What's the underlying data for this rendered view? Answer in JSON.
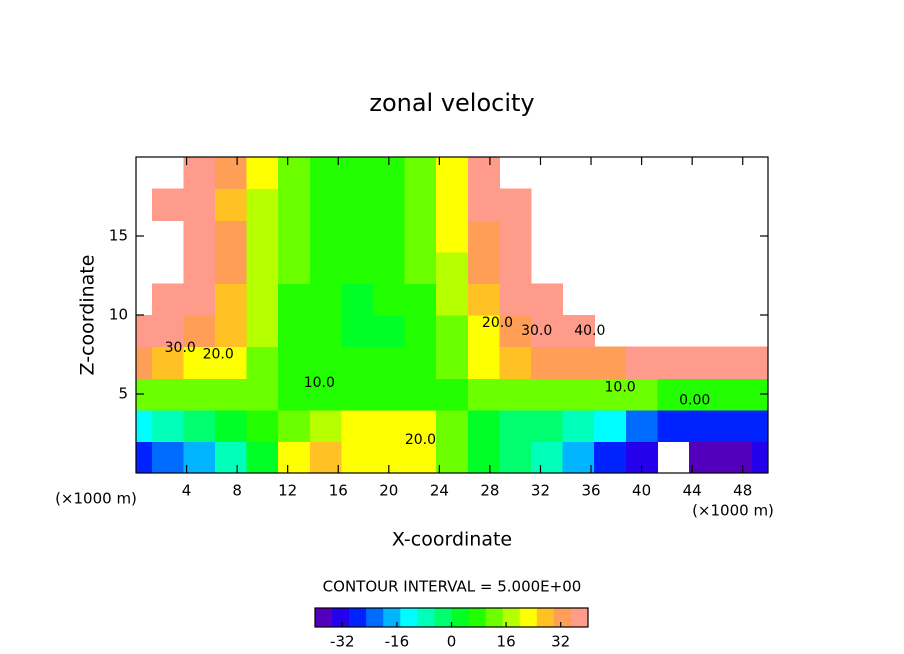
{
  "chart_data": {
    "type": "contour",
    "title": "zonal velocity",
    "x_label": "X-coordinate",
    "y_label": "Z-coordinate",
    "x_unit_label": "(×1000 m)",
    "contour_interval": {
      "value": 5,
      "label": "CONTOUR INTERVAL = 5.000E+00"
    },
    "xlim": [
      0,
      50
    ],
    "ylim": [
      0,
      20
    ],
    "xticks": [
      4,
      8,
      12,
      16,
      20,
      24,
      28,
      32,
      36,
      40,
      44,
      48
    ],
    "yticks": [
      5,
      10,
      15
    ],
    "clim": [
      -40,
      40
    ],
    "cticks": [
      -32,
      -16,
      0,
      16,
      32
    ],
    "x": [
      0,
      2.5,
      5,
      7.5,
      10,
      12.5,
      15,
      17.5,
      20,
      22.5,
      25,
      27.5,
      30,
      32.5,
      35,
      37.5,
      40,
      42.5,
      45,
      47.5,
      50
    ],
    "y": [
      1,
      3,
      5,
      7,
      9,
      11,
      13,
      15,
      17,
      19
    ],
    "values": [
      [
        -28,
        -24,
        -18,
        -8,
        2,
        20,
        28,
        24,
        22,
        20,
        10,
        2,
        -4,
        -10,
        -18,
        -26,
        -34,
        null,
        -39,
        -38,
        -34
      ],
      [
        -12,
        -8,
        -5,
        0,
        5,
        10,
        16,
        20,
        20,
        20,
        10,
        0,
        -2,
        -5,
        -10,
        -15,
        -22,
        -28,
        -30,
        -30,
        -28
      ],
      [
        12,
        12,
        12,
        12,
        10,
        8,
        7,
        8,
        9,
        9,
        9,
        10,
        12,
        12,
        12,
        11,
        10,
        9,
        8,
        7,
        6
      ],
      [
        30,
        27,
        24,
        20,
        14,
        9,
        6,
        5,
        6,
        8,
        14,
        20,
        26,
        30,
        32,
        34,
        35,
        36,
        36,
        36,
        36
      ],
      [
        46,
        40,
        34,
        26,
        16,
        9,
        5,
        4,
        4,
        7,
        14,
        24,
        34,
        40,
        45,
        null,
        null,
        null,
        null,
        null,
        null
      ],
      [
        null,
        44,
        38,
        28,
        16,
        9,
        5,
        4,
        5,
        8,
        16,
        28,
        38,
        46,
        null,
        null,
        null,
        null,
        null,
        null,
        null
      ],
      [
        null,
        null,
        42,
        32,
        18,
        10,
        6,
        5,
        6,
        10,
        18,
        30,
        40,
        null,
        null,
        null,
        null,
        null,
        null,
        null,
        null
      ],
      [
        null,
        null,
        40,
        30,
        18,
        12,
        8,
        7,
        8,
        12,
        20,
        30,
        42,
        null,
        null,
        null,
        null,
        null,
        null,
        null,
        null
      ],
      [
        null,
        42,
        36,
        28,
        18,
        12,
        9,
        8,
        8,
        12,
        20,
        35,
        45,
        null,
        null,
        null,
        null,
        null,
        null,
        null,
        null
      ],
      [
        null,
        null,
        40,
        32,
        22,
        14,
        9,
        8,
        8,
        12,
        22,
        38,
        null,
        null,
        null,
        null,
        null,
        null,
        null,
        null,
        null
      ]
    ],
    "contour_labels": [
      {
        "value": 30,
        "label": "30.0",
        "x": 3.5,
        "y": 7.9
      },
      {
        "value": 20,
        "label": "20.0",
        "x": 6.5,
        "y": 7.5
      },
      {
        "value": 10,
        "label": "10.0",
        "x": 14.5,
        "y": 5.7
      },
      {
        "value": 20,
        "label": "20.0",
        "x": 28.6,
        "y": 9.5
      },
      {
        "value": 30,
        "label": "30.0",
        "x": 31.7,
        "y": 9.0
      },
      {
        "value": 40,
        "label": "40.0",
        "x": 35.9,
        "y": 9.0
      },
      {
        "value": 10,
        "label": "10.0",
        "x": 38.3,
        "y": 5.4
      },
      {
        "value": 0,
        "label": "0.00",
        "x": 44.2,
        "y": 4.6
      },
      {
        "value": 20,
        "label": "20.0",
        "x": 22.5,
        "y": 2.1
      }
    ]
  }
}
